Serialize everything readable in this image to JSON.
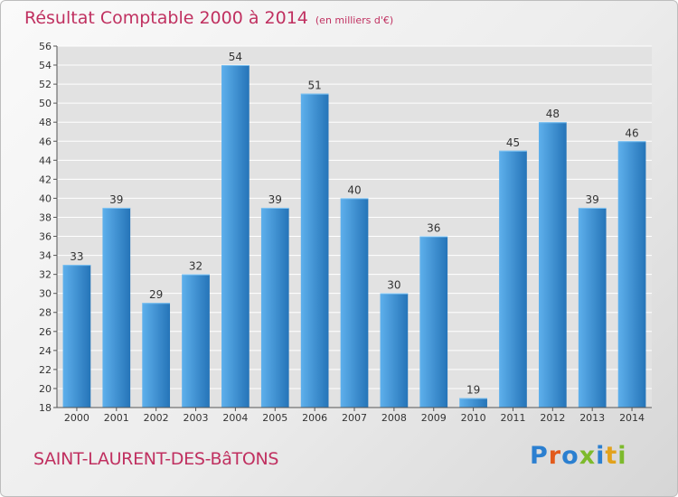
{
  "title": "Résultat Comptable 2000 à 2014",
  "subtitle": "(en milliers d'€)",
  "commune": "SAINT-LAURENT-DES-BâTONS",
  "logo": {
    "text": "Proxiti",
    "colors": [
      "#2b7fd0",
      "#e25a1c",
      "#2b7fd0",
      "#7dba2c",
      "#2b7fd0",
      "#e2a21c",
      "#7dba2c"
    ]
  },
  "colors": {
    "bar_light": "#5eb0ec",
    "bar_dark": "#2574b8",
    "title": "#c03060",
    "grid": "#ffffff",
    "plot_bg": "#e2e2e2"
  },
  "chart_data": {
    "type": "bar",
    "title": "Résultat Comptable 2000 à 2014",
    "xlabel": "",
    "ylabel": "",
    "categories": [
      "2000",
      "2001",
      "2002",
      "2003",
      "2004",
      "2005",
      "2006",
      "2007",
      "2008",
      "2009",
      "2010",
      "2011",
      "2012",
      "2013",
      "2014"
    ],
    "values": [
      33,
      39,
      29,
      32,
      54,
      39,
      51,
      40,
      30,
      36,
      19,
      45,
      48,
      39,
      46
    ],
    "ylim": [
      18,
      56
    ],
    "ytick_step": 2,
    "grid": true
  }
}
